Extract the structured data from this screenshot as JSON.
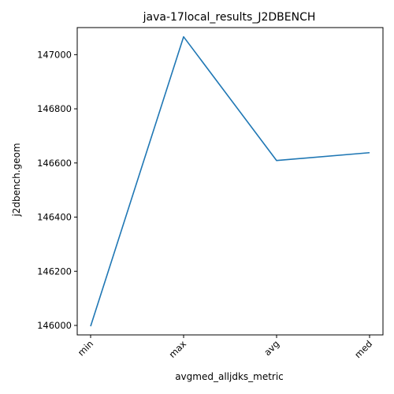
{
  "chart_data": {
    "type": "line",
    "title": "java-17local_results_J2DBENCH",
    "xlabel": "avgmed_alljdks_metric",
    "ylabel": "j2dbench.geom",
    "categories": [
      "min",
      "max",
      "avg",
      "med"
    ],
    "series": [
      {
        "values": [
          145997,
          147066,
          146609,
          146638
        ],
        "color": "#1f77b4"
      }
    ],
    "ylim": [
      145965,
      147100
    ],
    "yticks": [
      146000,
      146200,
      146400,
      146600,
      146800,
      147000
    ],
    "grid": false,
    "legend": "none"
  }
}
